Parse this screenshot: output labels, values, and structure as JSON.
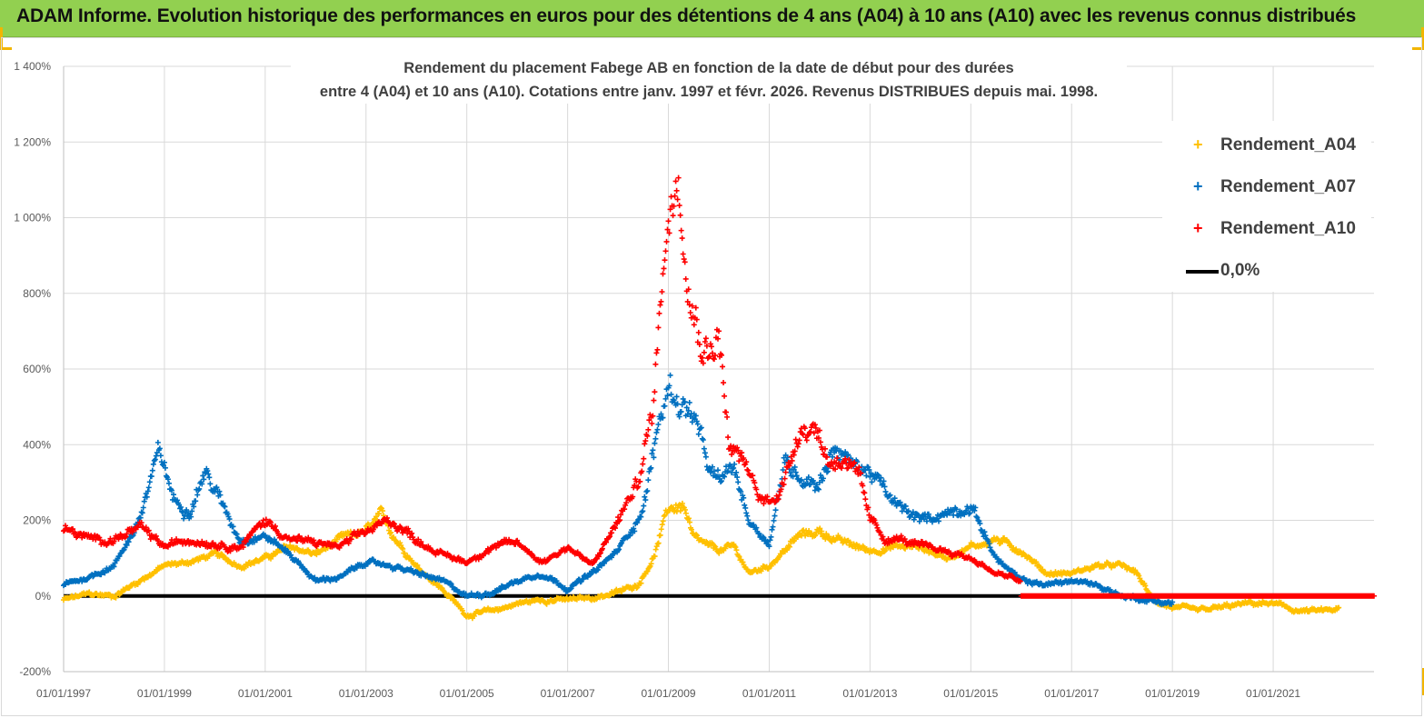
{
  "banner": {
    "title": "ADAM Informe. Evolution historique des performances en euros pour des détentions de 4 ans (A04) à 10 ans (A10) avec les revenus connus distribués"
  },
  "colors": {
    "banner": "#92d050",
    "a04": "#ffc000",
    "a07": "#0070c0",
    "a10": "#ff0000",
    "zero": "#000000",
    "grid": "#d9d9d9",
    "text": "#404040"
  },
  "chart_data": {
    "type": "scatter",
    "title_line1": "Rendement du placement Fabege AB en fonction de la date de début pour des durées",
    "title_line2": "entre 4 (A04) et 10 ans (A10).  Cotations entre janv. 1997 et févr. 2026. Revenus DISTRIBUES depuis mai. 1998.",
    "xlabel": "",
    "ylabel": "",
    "x_range": [
      1997.0,
      2023.0
    ],
    "ylim": [
      -200,
      1400
    ],
    "y_ticks": [
      -200,
      0,
      200,
      400,
      600,
      800,
      1000,
      1200,
      1400
    ],
    "y_tick_labels": [
      "-200%",
      "0%",
      "200%",
      "400%",
      "600%",
      "800%",
      "1 000%",
      "1 200%",
      "1 400%"
    ],
    "x_ticks": [
      1997,
      1999,
      2001,
      2003,
      2005,
      2007,
      2009,
      2011,
      2013,
      2015,
      2017,
      2019,
      2021
    ],
    "x_tick_labels": [
      "01/01/1997",
      "01/01/1999",
      "01/01/2001",
      "01/01/2003",
      "01/01/2005",
      "01/01/2007",
      "01/01/2009",
      "01/01/2011",
      "01/01/2013",
      "01/01/2015",
      "01/01/2017",
      "01/01/2019",
      "01/01/2021"
    ],
    "legend": [
      "Rendement_A04",
      "Rendement_A07",
      "Rendement_A10",
      "0,0%"
    ],
    "legend_position": "top-right",
    "series": [
      {
        "name": "Rendement_A04",
        "x": [
          1997.0,
          1997.5,
          1998.0,
          1998.5,
          1999.0,
          1999.5,
          2000.0,
          2000.5,
          2001.0,
          2001.5,
          2002.0,
          2002.5,
          2003.0,
          2003.3,
          2003.6,
          2004.0,
          2004.5,
          2005.0,
          2005.5,
          2006.0,
          2006.5,
          2007.0,
          2007.5,
          2008.0,
          2008.4,
          2008.7,
          2009.0,
          2009.3,
          2009.5,
          2009.8,
          2010.0,
          2010.3,
          2010.6,
          2011.0,
          2011.3,
          2011.6,
          2012.0,
          2012.5,
          2013.0,
          2013.5,
          2014.0,
          2014.5,
          2015.0,
          2015.5,
          2016.0,
          2016.5,
          2017.0,
          2017.5,
          2018.0,
          2018.3,
          2018.6,
          2019.0,
          2019.5,
          2020.0,
          2020.5,
          2021.0,
          2021.5,
          2022.0,
          2022.3
        ],
        "y": [
          -10,
          5,
          0,
          40,
          80,
          90,
          110,
          80,
          100,
          130,
          110,
          150,
          170,
          210,
          150,
          80,
          20,
          -50,
          -40,
          -20,
          -10,
          -10,
          -5,
          10,
          30,
          100,
          230,
          240,
          150,
          130,
          120,
          130,
          60,
          80,
          120,
          160,
          170,
          140,
          120,
          130,
          130,
          100,
          130,
          150,
          120,
          60,
          60,
          80,
          80,
          60,
          -10,
          -30,
          -40,
          -30,
          -20,
          -20,
          -40,
          -40,
          -35
        ]
      },
      {
        "name": "Rendement_A07",
        "x": [
          1997.0,
          1997.5,
          1998.0,
          1998.5,
          1998.9,
          1999.2,
          1999.5,
          1999.8,
          2000.0,
          2000.5,
          2001.0,
          2001.5,
          2002.0,
          2002.5,
          2003.0,
          2003.5,
          2004.0,
          2004.5,
          2005.0,
          2005.5,
          2006.0,
          2006.5,
          2007.0,
          2007.5,
          2008.0,
          2008.5,
          2008.8,
          2009.0,
          2009.3,
          2009.5,
          2009.8,
          2010.0,
          2010.3,
          2010.6,
          2011.0,
          2011.3,
          2011.6,
          2012.0,
          2012.3,
          2012.6,
          2013.0,
          2013.5,
          2014.0,
          2014.5,
          2015.0,
          2015.5,
          2016.0,
          2016.5,
          2017.0,
          2017.5,
          2018.0,
          2018.5,
          2019.0
        ],
        "y": [
          30,
          50,
          80,
          200,
          380,
          250,
          230,
          330,
          280,
          150,
          160,
          110,
          40,
          50,
          90,
          80,
          60,
          40,
          0,
          10,
          40,
          60,
          20,
          60,
          120,
          230,
          450,
          550,
          500,
          480,
          330,
          300,
          340,
          200,
          140,
          350,
          320,
          300,
          400,
          350,
          330,
          240,
          200,
          220,
          240,
          100,
          40,
          30,
          40,
          30,
          0,
          -10,
          -20
        ]
      },
      {
        "name": "Rendement_A10",
        "x": [
          1997.0,
          1997.5,
          1998.0,
          1998.5,
          1999.0,
          1999.5,
          2000.0,
          2000.5,
          2001.0,
          2001.5,
          2002.0,
          2002.5,
          2003.0,
          2003.5,
          2004.0,
          2004.5,
          2005.0,
          2005.5,
          2006.0,
          2006.5,
          2007.0,
          2007.5,
          2008.0,
          2008.4,
          2008.7,
          2008.9,
          2009.0,
          2009.2,
          2009.4,
          2009.6,
          2009.8,
          2010.0,
          2010.2,
          2010.5,
          2010.8,
          2011.0,
          2011.3,
          2011.6,
          2011.9,
          2012.2,
          2012.5,
          2012.8,
          2013.0,
          2013.3,
          2013.6,
          2014.0,
          2014.5,
          2015.0,
          2015.5,
          2016.0,
          2016.5,
          2017.0,
          2018.0,
          2019.0,
          2020.0,
          2021.0,
          2022.0,
          2023.0
        ],
        "y": [
          180,
          150,
          150,
          180,
          130,
          150,
          140,
          130,
          200,
          150,
          140,
          130,
          170,
          200,
          150,
          110,
          90,
          130,
          140,
          90,
          130,
          80,
          200,
          300,
          500,
          900,
          1000,
          1150,
          850,
          700,
          650,
          700,
          400,
          350,
          260,
          250,
          300,
          450,
          450,
          350,
          370,
          300,
          200,
          150,
          150,
          130,
          120,
          100,
          60,
          40,
          0,
          0,
          0,
          0,
          0,
          0,
          0,
          0
        ]
      }
    ],
    "reference_line": {
      "name": "0,0%",
      "y": 0
    }
  }
}
